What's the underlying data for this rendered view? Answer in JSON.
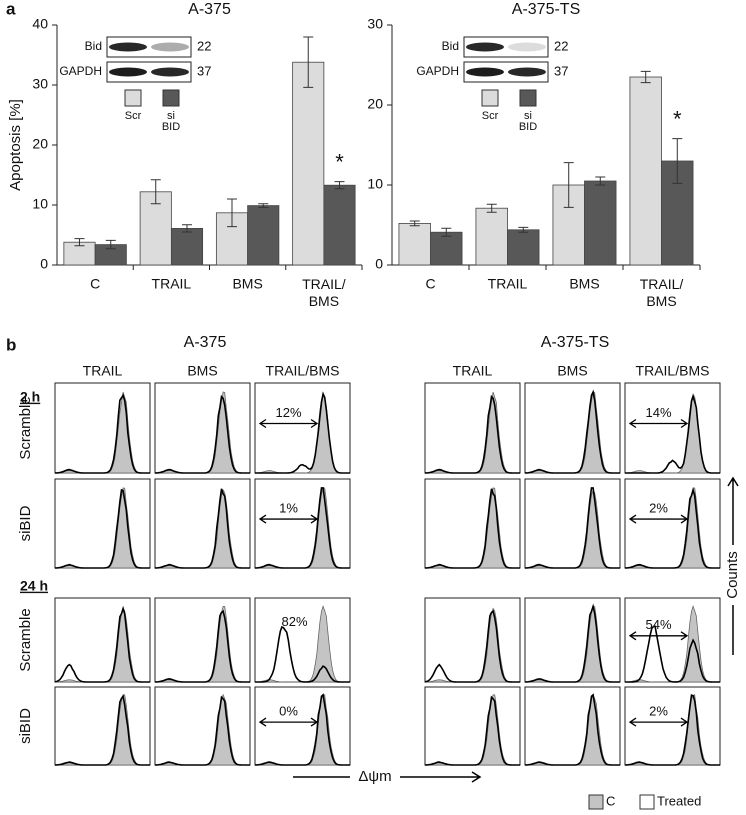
{
  "panel_a": {
    "label": "a"
  },
  "chart_data": [
    {
      "type": "bar",
      "title": "A-375",
      "ylabel": "Apoptosis [%]",
      "categories": [
        "C",
        "TRAIL",
        "BMS",
        "TRAIL/BMS"
      ],
      "series": [
        {
          "name": "Scr",
          "color": "#dcdcdc",
          "values": [
            3.8,
            12.2,
            8.7,
            33.8
          ],
          "errors": [
            0.6,
            2.0,
            2.3,
            4.2
          ]
        },
        {
          "name": "si BID",
          "color": "#585858",
          "values": [
            3.4,
            6.1,
            9.9,
            13.3
          ],
          "errors": [
            0.7,
            0.6,
            0.3,
            0.6
          ]
        }
      ],
      "ylim": [
        0,
        40
      ],
      "yticks": [
        0,
        10,
        20,
        30,
        40
      ],
      "significance": "*",
      "blot": {
        "rows": [
          "Bid",
          "GAPDH"
        ],
        "kda": [
          "22",
          "37"
        ]
      }
    },
    {
      "type": "bar",
      "title": "A-375-TS",
      "categories": [
        "C",
        "TRAIL",
        "BMS",
        "TRAIL/BMS"
      ],
      "series": [
        {
          "name": "Scr",
          "color": "#dcdcdc",
          "values": [
            5.2,
            7.1,
            10.0,
            23.5
          ],
          "errors": [
            0.3,
            0.5,
            2.8,
            0.7
          ]
        },
        {
          "name": "si BID",
          "color": "#585858",
          "values": [
            4.1,
            4.4,
            10.5,
            13.0
          ],
          "errors": [
            0.5,
            0.3,
            0.5,
            2.8
          ]
        }
      ],
      "ylim": [
        0,
        30
      ],
      "yticks": [
        0,
        10,
        20,
        30
      ],
      "significance": "*",
      "blot": {
        "rows": [
          "Bid",
          "GAPDH"
        ],
        "kda": [
          "22",
          "37"
        ]
      }
    }
  ],
  "panel_b": {
    "label": "b",
    "groups": [
      {
        "title": "A-375",
        "columns": [
          "TRAIL",
          "BMS",
          "TRAIL/BMS"
        ],
        "annotations": [
          "12%",
          "1%",
          "82%",
          "0%"
        ]
      },
      {
        "title": "A-375-TS",
        "columns": [
          "TRAIL",
          "BMS",
          "TRAIL/BMS"
        ],
        "annotations": [
          "14%",
          "2%",
          "54%",
          "2%"
        ]
      }
    ],
    "times": [
      "2 h",
      "24 h"
    ],
    "rows": [
      "Scramble",
      "siBID"
    ],
    "x_axis": "Δψm",
    "y_axis": "Counts",
    "legend": [
      "C",
      "Treated"
    ]
  }
}
